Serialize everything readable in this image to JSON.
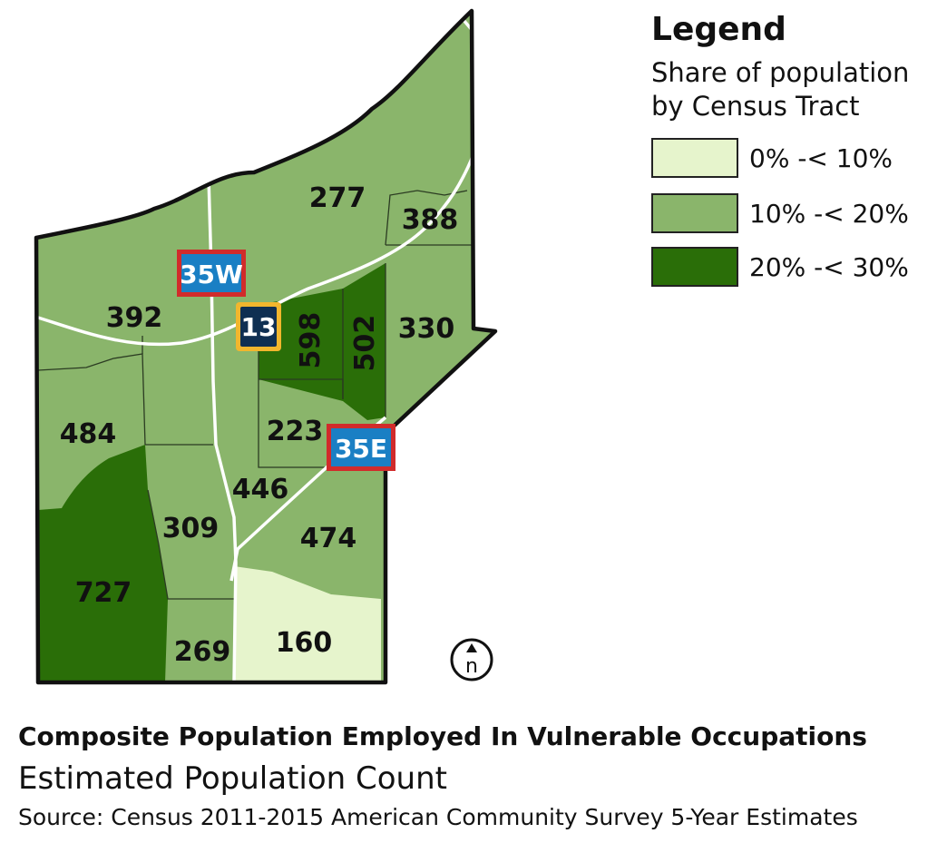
{
  "legend": {
    "title": "Legend",
    "subtitle_line1": "Share of population",
    "subtitle_line2": "by Census Tract",
    "classes": [
      {
        "label": "0% -< 10%",
        "color": "#e6f4cc"
      },
      {
        "label": "10% -< 20%",
        "color": "#8ab56b"
      },
      {
        "label": "20% -< 30%",
        "color": "#2a6e08"
      }
    ]
  },
  "tracts": [
    {
      "label": "277"
    },
    {
      "label": "388"
    },
    {
      "label": "392"
    },
    {
      "label": "598"
    },
    {
      "label": "502"
    },
    {
      "label": "330"
    },
    {
      "label": "484"
    },
    {
      "label": "223"
    },
    {
      "label": "446"
    },
    {
      "label": "309"
    },
    {
      "label": "474"
    },
    {
      "label": "727"
    },
    {
      "label": "269"
    },
    {
      "label": "160"
    }
  ],
  "shields": {
    "i35w": "35W",
    "hwy13": "13",
    "i35e": "35E"
  },
  "north_arrow": {
    "label": "n"
  },
  "caption": {
    "title": "Composite Population Employed In Vulnerable Occupations",
    "subtitle": "Estimated Population Count",
    "source": "Source: Census 2011-2015 American Community Survey 5-Year Estimates"
  },
  "colors": {
    "border": "#111111",
    "road": "#ffffff",
    "interstate_fill": "#1a7fc4",
    "interstate_border": "#d12b2b",
    "state_hwy_fill": "#0f2f52",
    "state_hwy_border": "#f2b62d"
  }
}
